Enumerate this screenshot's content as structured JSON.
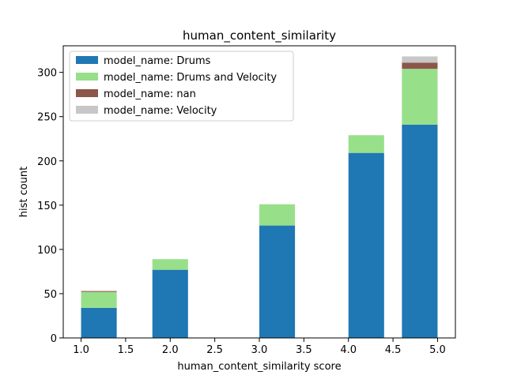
{
  "chart_data": {
    "type": "bar",
    "stacked": true,
    "title": "human_content_similarity",
    "xlabel": "human_content_similarity score",
    "ylabel": "hist count",
    "xlim": [
      0.8,
      5.2
    ],
    "ylim": [
      0,
      330
    ],
    "x_ticks": [
      "1.0",
      "1.5",
      "2.0",
      "2.5",
      "3.0",
      "3.5",
      "4.0",
      "4.5",
      "5.0"
    ],
    "y_ticks": [
      "0",
      "50",
      "100",
      "150",
      "200",
      "250",
      "300"
    ],
    "bins": [
      {
        "x0": 1.0,
        "x1": 1.4
      },
      {
        "x0": 1.8,
        "x1": 2.2
      },
      {
        "x0": 3.0,
        "x1": 3.4
      },
      {
        "x0": 4.0,
        "x1": 4.4
      },
      {
        "x0": 4.6,
        "x1": 5.0
      }
    ],
    "series": [
      {
        "name": "model_name: Drums",
        "color": "#1f77b4",
        "values": [
          34,
          77,
          127,
          209,
          241
        ]
      },
      {
        "name": "model_name: Drums and Velocity",
        "color": "#98df8a",
        "values": [
          18,
          12,
          24,
          20,
          63
        ]
      },
      {
        "name": "model_name: nan",
        "color": "#8c564b",
        "values": [
          1,
          0,
          0,
          0,
          7
        ]
      },
      {
        "name": "model_name: Velocity",
        "color": "#c7c7c7",
        "values": [
          0,
          0,
          0,
          0,
          7
        ]
      }
    ],
    "legend_position": "upper-left",
    "grid": false
  }
}
